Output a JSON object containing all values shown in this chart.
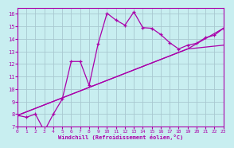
{
  "xlabel": "Windchill (Refroidissement éolien,°C)",
  "background_color": "#c8eef0",
  "grid_color": "#a8c8d0",
  "line_color": "#aa00aa",
  "xlim": [
    0,
    23
  ],
  "ylim": [
    7,
    16.5
  ],
  "x_ticks": [
    0,
    1,
    2,
    3,
    4,
    5,
    6,
    7,
    8,
    9,
    10,
    11,
    12,
    13,
    14,
    15,
    16,
    17,
    18,
    19,
    20,
    21,
    22,
    23
  ],
  "y_ticks": [
    7,
    8,
    9,
    10,
    11,
    12,
    13,
    14,
    15,
    16
  ],
  "curve_x": [
    0,
    1,
    2,
    3,
    4,
    5,
    6,
    7,
    8,
    9,
    10,
    11,
    12,
    13,
    14,
    15,
    16,
    17,
    18,
    19,
    20,
    21,
    22,
    23
  ],
  "curve_y": [
    7.9,
    7.75,
    8.0,
    6.65,
    8.0,
    9.2,
    12.2,
    12.2,
    10.3,
    13.6,
    16.05,
    15.5,
    15.1,
    16.15,
    14.9,
    14.85,
    14.35,
    13.7,
    13.2,
    13.5,
    13.65,
    14.1,
    14.3,
    14.85
  ],
  "line1_x": [
    0,
    19,
    23
  ],
  "line1_y": [
    7.9,
    13.2,
    13.5
  ],
  "line2_x": [
    0,
    19,
    23
  ],
  "line2_y": [
    7.9,
    13.2,
    14.85
  ]
}
